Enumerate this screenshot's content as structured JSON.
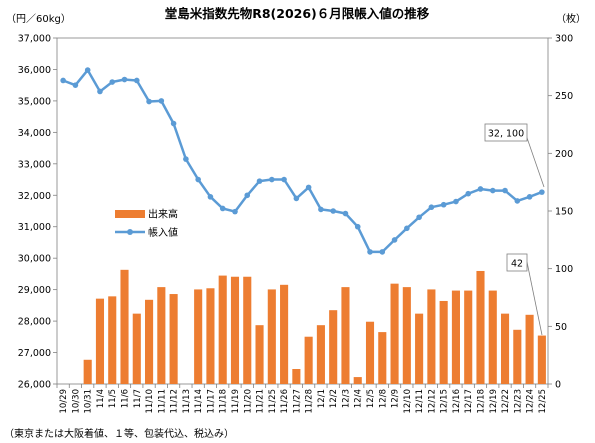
{
  "chart_data": {
    "type": "bar+line",
    "title": "堂島米指数先物R8(2026)６月限帳入値の推移",
    "left_unit": "（円／60kg）",
    "right_unit": "（枚）",
    "footnote": "（東京または大阪着値、１等、包装代込、税込み）",
    "legend_position": "left-middle",
    "grid": false,
    "y_left": {
      "min": 26000,
      "max": 37000,
      "ticks": [
        "26,000",
        "27,000",
        "28,000",
        "29,000",
        "30,000",
        "31,000",
        "32,000",
        "33,000",
        "34,000",
        "35,000",
        "36,000",
        "37,000"
      ]
    },
    "y_right": {
      "min": 0,
      "max": 300,
      "ticks": [
        "0",
        "50",
        "100",
        "150",
        "200",
        "250",
        "300"
      ]
    },
    "categories": [
      "10/29",
      "10/30",
      "10/31",
      "11/4",
      "11/5",
      "11/6",
      "11/7",
      "11/10",
      "11/11",
      "11/12",
      "11/13",
      "11/14",
      "11/17",
      "11/18",
      "11/19",
      "11/20",
      "11/21",
      "11/25",
      "11/26",
      "11/27",
      "11/28",
      "12/1",
      "12/2",
      "12/3",
      "12/4",
      "12/5",
      "12/8",
      "12/9",
      "12/10",
      "12/11",
      "12/12",
      "12/15",
      "12/16",
      "12/17",
      "12/18",
      "12/19",
      "12/22",
      "12/23",
      "12/24",
      "12/25"
    ],
    "series": [
      {
        "name": "出来高",
        "axis": "right",
        "kind": "bar",
        "color": "#ED7D31",
        "values": [
          0,
          0,
          21,
          74,
          76,
          99,
          61,
          73,
          84,
          78,
          0,
          82,
          83,
          94,
          93,
          93,
          51,
          82,
          86,
          13,
          41,
          51,
          64,
          84,
          6,
          54,
          45,
          87,
          84,
          61,
          82,
          72,
          81,
          81,
          98,
          81,
          61,
          47,
          60,
          42
        ]
      },
      {
        "name": "帳入値",
        "axis": "left",
        "kind": "line",
        "color": "#5B9BD5",
        "values": [
          35650,
          35500,
          35980,
          35300,
          35600,
          35680,
          35650,
          34980,
          35000,
          34280,
          33150,
          32500,
          31950,
          31580,
          31480,
          32000,
          32450,
          32500,
          32500,
          31900,
          32250,
          31550,
          31500,
          31420,
          31000,
          30200,
          30200,
          30580,
          30950,
          31300,
          31620,
          31700,
          31800,
          32050,
          32200,
          32150,
          32150,
          31820,
          31950,
          32100
        ]
      }
    ],
    "callouts": [
      {
        "series": "帳入値",
        "index": 39,
        "label": "32, 100"
      },
      {
        "series": "出来高",
        "index": 39,
        "label": "42"
      }
    ]
  }
}
